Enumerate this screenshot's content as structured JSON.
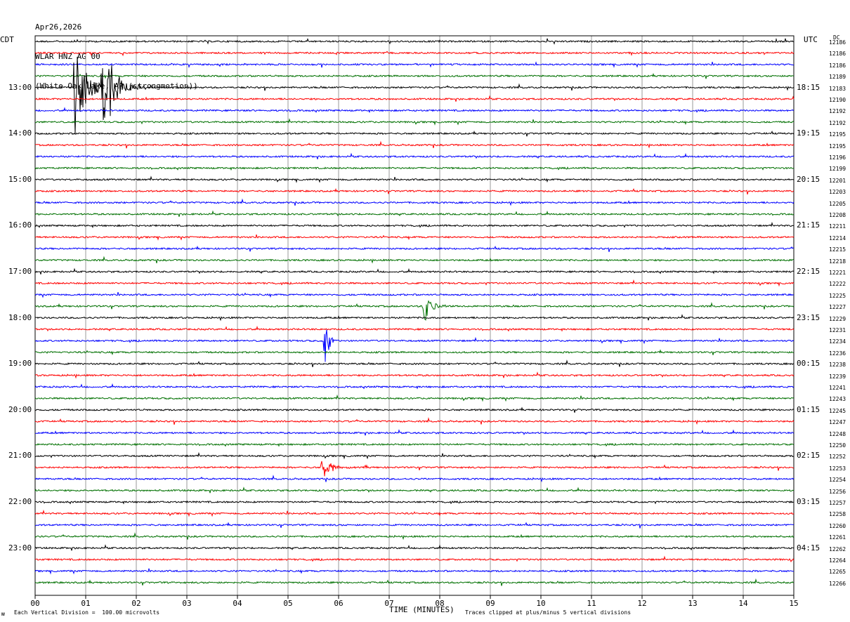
{
  "header": {
    "date": "Apr26,2026",
    "station": "WLAR HNZ AG 00",
    "location": "(White Oak Lake, AR (strongmotion))"
  },
  "left_tz": "CDT",
  "right_tz": "UTC",
  "dc_label": "DC",
  "footer": {
    "scale_note": "Each Vertical Division =  100.00 microvolts",
    "x_axis_title": "TIME (MINUTES)",
    "clip_note": "Traces clipped at plus/minus 5 vertical divisions",
    "corner_mark": "ᴍ"
  },
  "colors": {
    "trace_cycle": [
      "#000000",
      "#ff0000",
      "#0000ff",
      "#007000"
    ],
    "grid": "#9a9a9a"
  },
  "chart_data": {
    "type": "line",
    "title": "WLAR HNZ AG 00",
    "xlabel": "TIME (MINUTES)",
    "x_ticks": [
      "00",
      "01",
      "02",
      "03",
      "04",
      "05",
      "06",
      "07",
      "08",
      "09",
      "10",
      "11",
      "12",
      "13",
      "14",
      "15"
    ],
    "xlim": [
      0,
      15
    ],
    "trace_count": 48,
    "minutes_per_trace": 15,
    "left_hour_labels": [
      "13:00",
      "14:00",
      "15:00",
      "16:00",
      "17:00",
      "18:00",
      "19:00",
      "20:00",
      "21:00",
      "22:00",
      "23:00"
    ],
    "right_hour_labels": [
      "18:15",
      "19:15",
      "20:15",
      "21:15",
      "22:15",
      "23:15",
      "00:15",
      "01:15",
      "02:15",
      "03:15",
      "04:15"
    ],
    "dc_offsets": [
      12186,
      12186,
      12186,
      12189,
      12183,
      12190,
      12192,
      12192,
      12195,
      12195,
      12196,
      12199,
      12201,
      12203,
      12205,
      12208,
      12211,
      12214,
      12215,
      12218,
      12221,
      12222,
      12225,
      12227,
      12229,
      12231,
      12234,
      12236,
      12238,
      12239,
      12241,
      12243,
      12245,
      12247,
      12248,
      12250,
      12252,
      12253,
      12254,
      12256,
      12257,
      12258,
      12260,
      12261,
      12262,
      12264,
      12265,
      12266
    ],
    "events": [
      {
        "trace": 4,
        "minute": 0.8,
        "amplitude": 5,
        "duration": 0.7
      },
      {
        "trace": 4,
        "minute": 1.35,
        "amplitude": 5,
        "duration": 0.8
      },
      {
        "trace": 26,
        "minute": 5.75,
        "amplitude": 3,
        "duration": 0.2
      },
      {
        "trace": 23,
        "minute": 7.7,
        "amplitude": 1.5,
        "duration": 0.5
      },
      {
        "trace": 37,
        "minute": 5.7,
        "amplitude": 1.0,
        "duration": 0.6
      }
    ],
    "scale_microvolts_per_division": 100.0
  }
}
